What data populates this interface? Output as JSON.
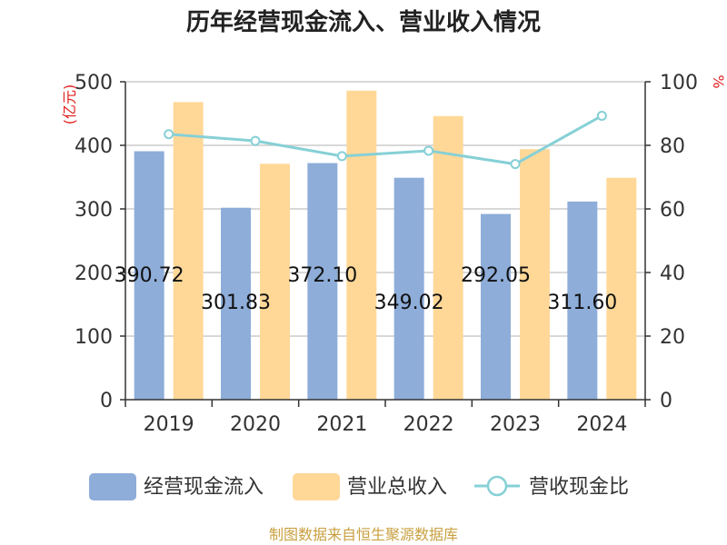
{
  "title": "历年经营现金流入、营业收入情况",
  "source": "制图数据来自恒生聚源数据库",
  "chart_data": {
    "type": "bar",
    "title": "历年经营现金流入、营业收入情况",
    "categories": [
      "2019",
      "2020",
      "2021",
      "2022",
      "2023",
      "2024"
    ],
    "y_left": {
      "unit": "(亿元)",
      "ylim": [
        0,
        500
      ],
      "ticks": [
        "0",
        "100",
        "200",
        "300",
        "400",
        "500"
      ]
    },
    "y_right": {
      "unit": "%",
      "ylim": [
        0,
        100
      ],
      "ticks": [
        "0",
        "20",
        "40",
        "60",
        "80",
        "100"
      ]
    },
    "series": [
      {
        "name": "经营现金流入",
        "type": "bar",
        "axis": "left",
        "color": "#8eadd9",
        "values": [
          390.72,
          301.83,
          372.1,
          349.02,
          292.05,
          311.6
        ],
        "data_labels": [
          "390.72",
          "301.83",
          "372.10",
          "349.02",
          "292.05",
          "311.60"
        ]
      },
      {
        "name": "营业总收入",
        "type": "bar",
        "axis": "left",
        "color": "#ffd898",
        "values": [
          468.0,
          371.0,
          486.0,
          446.0,
          394.0,
          349.0
        ]
      },
      {
        "name": "营收现金比",
        "type": "line",
        "axis": "right",
        "color": "#86d0d6",
        "values": [
          83.5,
          81.4,
          76.6,
          78.3,
          74.1,
          89.3
        ]
      }
    ],
    "grid": true,
    "legend": "bottom"
  }
}
